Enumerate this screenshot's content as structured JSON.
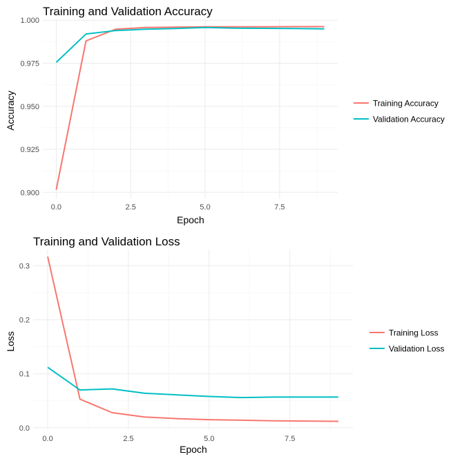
{
  "chart_data": [
    {
      "type": "line",
      "title": "Training and Validation Accuracy",
      "xlabel": "Epoch",
      "ylabel": "Accuracy",
      "xlim": [
        -0.45,
        9.45
      ],
      "ylim": [
        0.8965,
        1.0005
      ],
      "x_ticks": [
        0,
        2.5,
        5,
        7.5
      ],
      "x_tick_labels": [
        "0.0",
        "2.5",
        "5.0",
        "7.5"
      ],
      "y_ticks": [
        0.9,
        0.925,
        0.95,
        0.975,
        1.0
      ],
      "y_tick_labels": [
        "0.900",
        "0.925",
        "0.950",
        "0.975",
        "1.000"
      ],
      "grid": true,
      "legend_position": "right",
      "x": [
        0,
        1,
        2,
        3,
        4,
        5,
        6,
        7,
        8,
        9
      ],
      "series": [
        {
          "name": "Training Accuracy",
          "color": "#F8766D",
          "values": [
            0.9015,
            0.988,
            0.9948,
            0.9958,
            0.996,
            0.9962,
            0.9962,
            0.9962,
            0.9963,
            0.9963
          ]
        },
        {
          "name": "Validation Accuracy",
          "color": "#00BFC4",
          "values": [
            0.9755,
            0.992,
            0.994,
            0.9948,
            0.9952,
            0.9958,
            0.9954,
            0.9953,
            0.9952,
            0.995
          ]
        }
      ]
    },
    {
      "type": "line",
      "title": "Training and Validation Loss",
      "xlabel": "Epoch",
      "ylabel": "Loss",
      "xlim": [
        -0.45,
        9.45
      ],
      "ylim": [
        -0.004,
        0.33
      ],
      "x_ticks": [
        0,
        2.5,
        5,
        7.5
      ],
      "x_tick_labels": [
        "0.0",
        "2.5",
        "5.0",
        "7.5"
      ],
      "y_ticks": [
        0,
        0.1,
        0.2,
        0.3
      ],
      "y_tick_labels": [
        "0.0",
        "0.1",
        "0.2",
        "0.3"
      ],
      "grid": true,
      "legend_position": "right",
      "x": [
        0,
        1,
        2,
        3,
        4,
        5,
        6,
        7,
        8,
        9
      ],
      "series": [
        {
          "name": "Training Loss",
          "color": "#F8766D",
          "values": [
            0.317,
            0.053,
            0.028,
            0.02,
            0.017,
            0.015,
            0.014,
            0.013,
            0.0125,
            0.012
          ]
        },
        {
          "name": "Validation Loss",
          "color": "#00BFC4",
          "values": [
            0.112,
            0.07,
            0.072,
            0.064,
            0.061,
            0.058,
            0.056,
            0.057,
            0.057,
            0.057
          ]
        }
      ]
    }
  ]
}
